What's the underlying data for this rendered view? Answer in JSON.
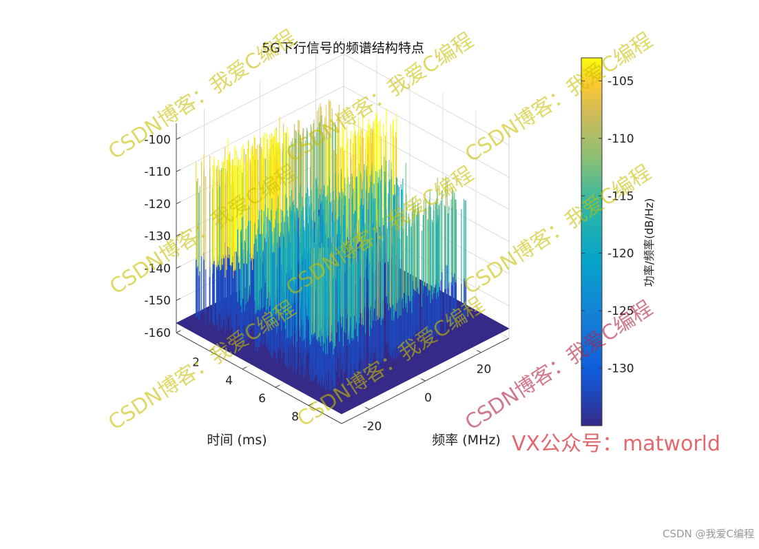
{
  "chart_data": {
    "type": "surface",
    "title": "5G下行信号的频谱结构特点",
    "xlabel": "时间 (ms)",
    "ylabel": "频率 (MHz)",
    "zlabel": "",
    "colorbar_label": "功率/频率(dB/Hz)",
    "colormap": "parula",
    "grid": true,
    "xlim": [
      0,
      10
    ],
    "ylim": [
      -30,
      30
    ],
    "zlim": [
      -160,
      -95
    ],
    "clim": [
      -135,
      -103
    ],
    "x_ticks": [
      2,
      4,
      6,
      8
    ],
    "x_tick_labels": [
      "2",
      "4",
      "6",
      "8"
    ],
    "y_ticks": [
      -20,
      0,
      20
    ],
    "y_tick_labels": [
      "-20",
      "0",
      "20"
    ],
    "z_ticks": [
      -160,
      -150,
      -140,
      -130,
      -120,
      -110,
      -100
    ],
    "z_tick_labels": [
      "-160",
      "-150",
      "-140",
      "-130",
      "-120",
      "-110",
      "-100"
    ],
    "colorbar_ticks": [
      -130,
      -125,
      -120,
      -115,
      -110,
      -105
    ],
    "colorbar_tick_labels": [
      "-130",
      "-125",
      "-120",
      "-115",
      "-110",
      "-105"
    ],
    "noise_floor": -157,
    "series": [
      {
        "time_ms": [
          0.0,
          1.0
        ],
        "freq_MHz": [
          -25,
          25
        ],
        "peak_dB": -108
      },
      {
        "time_ms": [
          1.0,
          2.5
        ],
        "freq_MHz": [
          -25,
          0
        ],
        "peak_dB": -101
      },
      {
        "time_ms": [
          2.5,
          5.0
        ],
        "freq_MHz": [
          -25,
          25
        ],
        "peak_dB": -116
      },
      {
        "time_ms": [
          3.0,
          4.5
        ],
        "freq_MHz": [
          5,
          25
        ],
        "peak_dB": -101
      },
      {
        "time_ms": [
          5.0,
          7.0
        ],
        "freq_MHz": [
          -25,
          -5
        ],
        "peak_dB": -120
      },
      {
        "time_ms": [
          7.0,
          8.5
        ],
        "freq_MHz": [
          -25,
          25
        ],
        "peak_dB": -113
      }
    ]
  },
  "watermarks": [
    "CSDN博客：我爱C编程",
    "CSDN博客：我爱C编程",
    "CSDN博客：我爱C编程",
    "CSDN博客：我爱C编程",
    "CSDN博客：我爱C编程",
    "CSDN博客：我爱C编程",
    "CSDN博客：我爱C编程",
    "CSDN博客：我爱C编程",
    "CSDN博客：我爱C编程"
  ],
  "watermark_colors": [
    "#c8c000",
    "#c8c000",
    "#c8c000",
    "#c8c000",
    "#c8c000",
    "#c8c000",
    "#c8c000",
    "#c8c000",
    "#b02040"
  ],
  "promo_text": "VX公众号：matworld",
  "promo_color": "#d9363e",
  "footer_text": "CSDN @我爱C编程"
}
